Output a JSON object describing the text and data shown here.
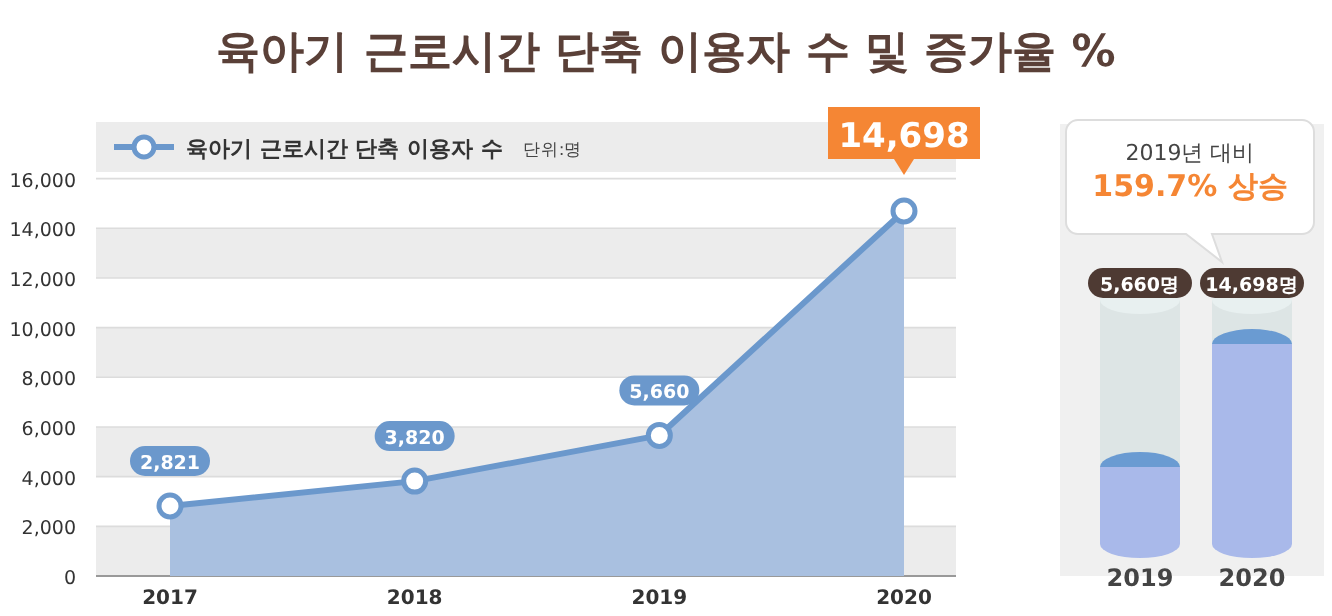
{
  "chart_data": [
    {
      "type": "area",
      "title": "육아기 근로시간 단축 이용자 수 및 증가율 %",
      "categories": [
        "2017",
        "2018",
        "2019",
        "2020"
      ],
      "series": [
        {
          "name": "육아기 근로시간 단축 이용자 수",
          "color": "#6b98cc",
          "values": [
            2821,
            3820,
            5660,
            14698
          ],
          "value_labels": [
            "2,821",
            "3,820",
            "5,660",
            "14,698"
          ]
        }
      ],
      "ylim": [
        0,
        16000
      ],
      "yticks": [
        0,
        {
          "value": 2000,
          "label": "2,000"
        },
        {
          "value": 4000,
          "label": "4,000"
        },
        {
          "value": 6000,
          "label": "6,000"
        },
        {
          "value": 8000,
          "label": "8,000"
        },
        {
          "value": 10000,
          "label": "10,000"
        },
        {
          "value": 12000,
          "label": "12,000"
        },
        {
          "value": 14000,
          "label": "14,000"
        },
        {
          "value": 16000,
          "label": "16,000"
        }
      ],
      "grid": "y",
      "legend": "top left",
      "marker": "circle",
      "annotations": [
        "단위:명"
      ]
    },
    {
      "type": "bar",
      "categories": [
        "2019",
        "2020"
      ],
      "values": [
        5660,
        14698
      ],
      "value_labels": [
        "5,660명",
        "14,698명"
      ],
      "color": "#a9b9ea",
      "annotations": [
        "2019년 대비",
        "159.7% 상승"
      ]
    }
  ]
}
